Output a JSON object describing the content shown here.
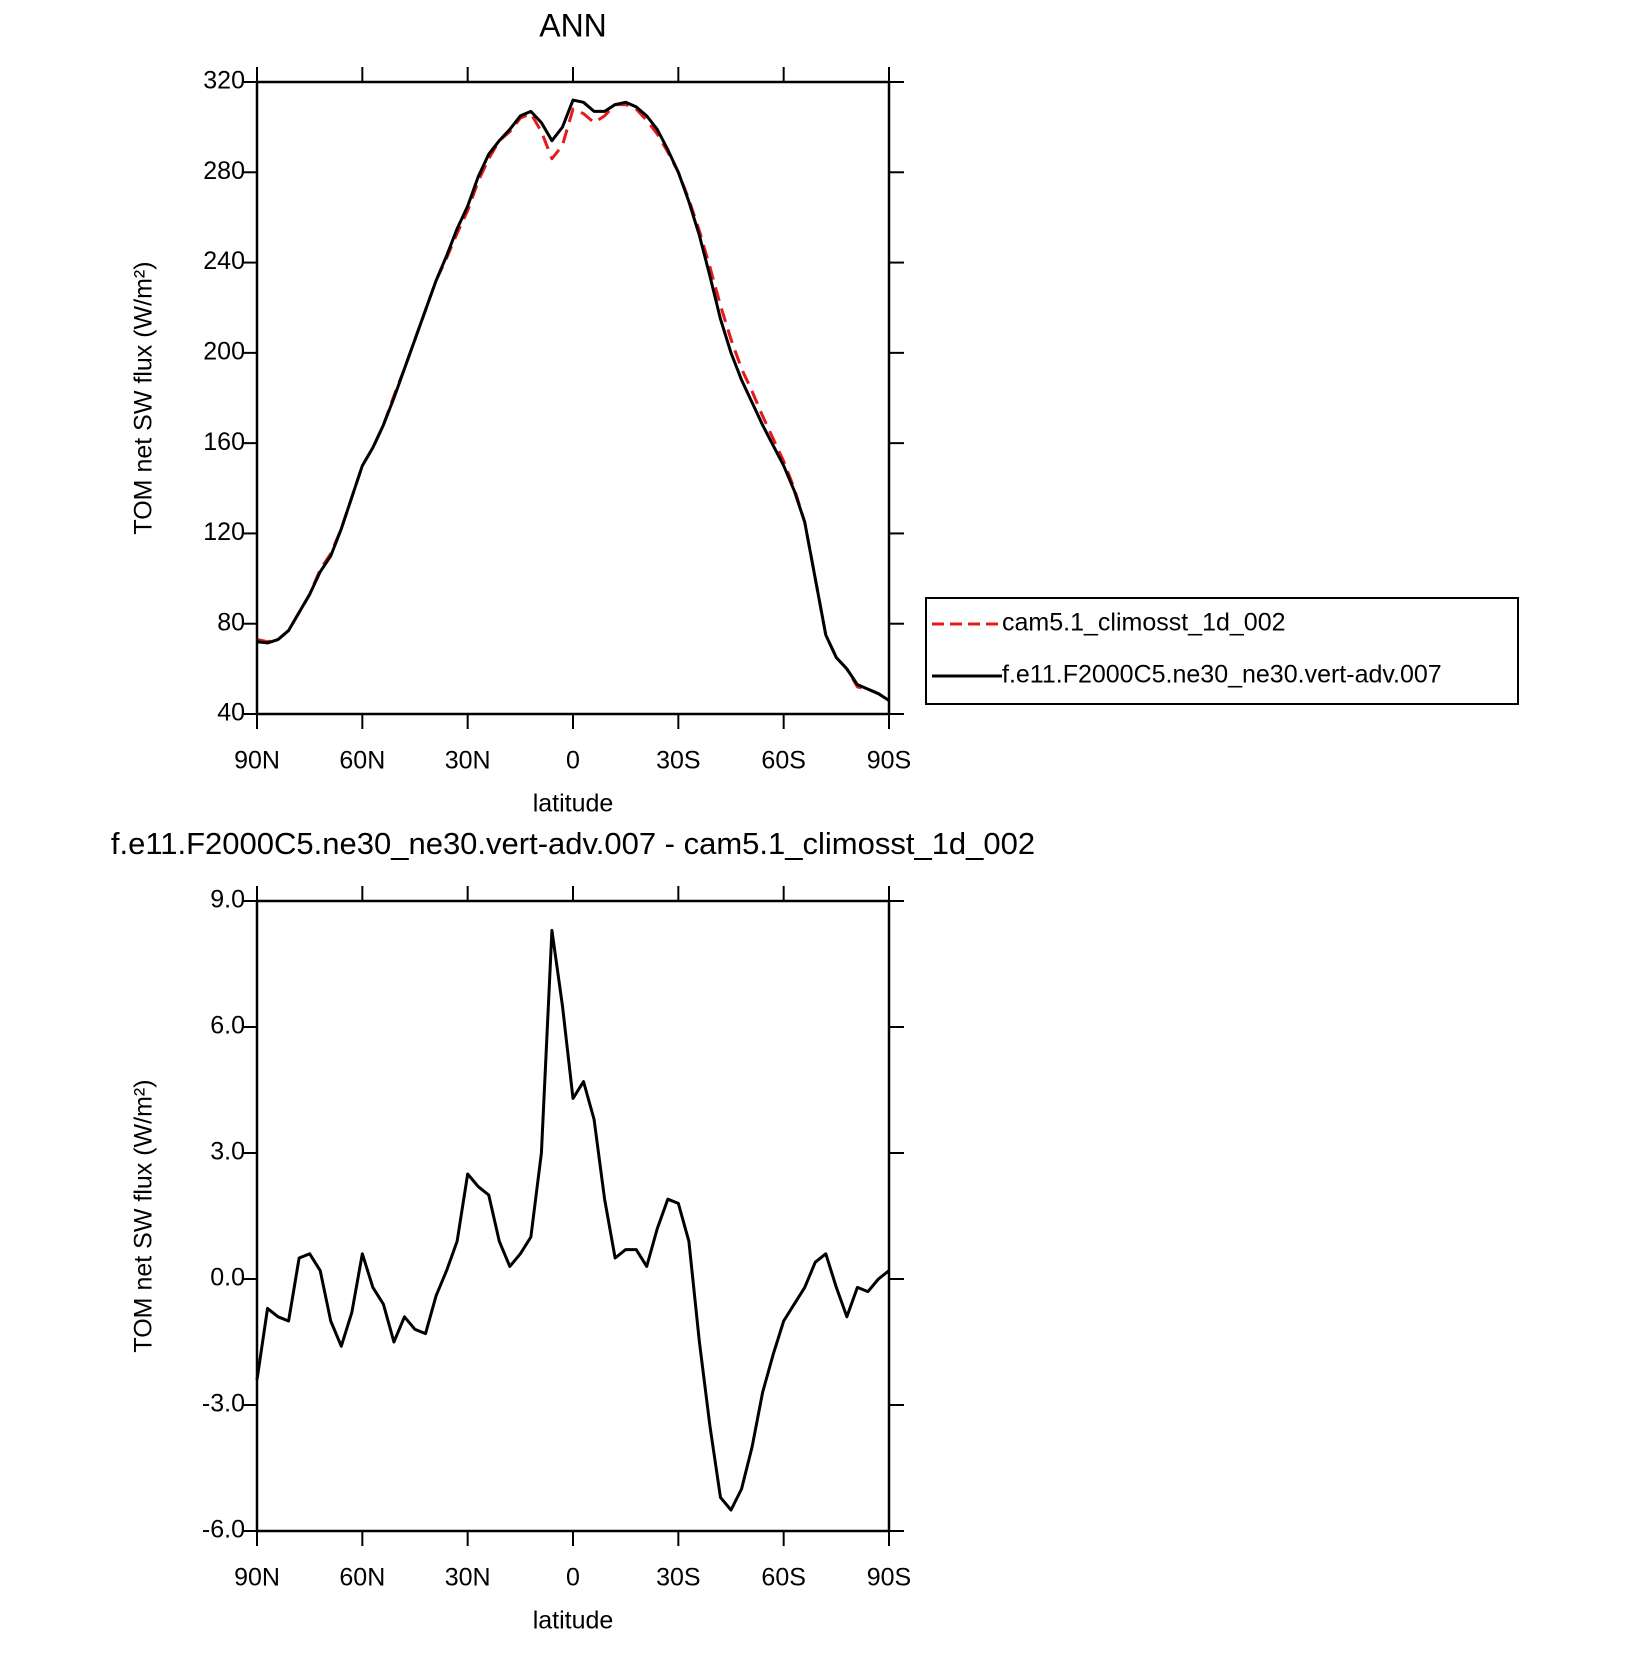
{
  "chart_data": [
    {
      "type": "line",
      "title": "ANN",
      "xlabel": "latitude",
      "ylabel": "TOM net SW flux (W/m²)",
      "x": [
        90,
        87,
        84,
        81,
        78,
        75,
        72,
        69,
        66,
        63,
        60,
        57,
        54,
        51,
        48,
        45,
        42,
        39,
        36,
        33,
        30,
        27,
        24,
        21,
        18,
        15,
        12,
        9,
        6,
        3,
        0,
        -3,
        -6,
        -9,
        -12,
        -15,
        -18,
        -21,
        -24,
        -27,
        -30,
        -33,
        -36,
        -39,
        -42,
        -45,
        -48,
        -51,
        -54,
        -57,
        -60,
        -63,
        -66,
        -69,
        -72,
        -75,
        -78,
        -81,
        -84,
        -87,
        -90
      ],
      "xlim": [
        90,
        -90
      ],
      "xticks": [
        {
          "value": 90,
          "label": "90N"
        },
        {
          "value": 60,
          "label": "60N"
        },
        {
          "value": 30,
          "label": "30N"
        },
        0,
        {
          "value": -30,
          "label": "30S"
        },
        {
          "value": -60,
          "label": "60S"
        },
        {
          "value": -90,
          "label": "90S"
        }
      ],
      "ylim": [
        40,
        320
      ],
      "yticks": [
        40,
        80,
        120,
        160,
        200,
        240,
        280,
        320
      ],
      "legend": "outside-right",
      "series": [
        {
          "name": "cam5.1_climosst_1d_002",
          "color": "#e41a1c",
          "style": "dashed",
          "values": [
            73,
            72,
            73,
            77,
            85,
            93,
            104,
            111,
            122,
            136,
            150,
            158,
            168,
            181,
            193,
            206,
            219,
            232,
            242,
            253,
            263,
            276,
            286,
            294,
            298,
            304,
            306,
            298,
            286,
            292,
            308,
            306,
            302,
            305,
            310,
            310,
            308,
            303,
            297,
            289,
            280,
            268,
            254,
            238,
            221,
            206,
            193,
            183,
            172,
            162,
            152,
            140,
            125,
            100,
            75,
            65,
            60,
            52,
            51,
            49,
            46
          ]
        },
        {
          "name": "f.e11.F2000C5.ne30_ne30.vert-adv.007",
          "color": "#000000",
          "style": "solid",
          "values": [
            72,
            71.5,
            73,
            77,
            85,
            93,
            103,
            110,
            122,
            136,
            150,
            158,
            168,
            180,
            193,
            206,
            219,
            232,
            243,
            255,
            265,
            278,
            288,
            294,
            299,
            305,
            307,
            302,
            294,
            300,
            312,
            311,
            307,
            307,
            310,
            311,
            309,
            305,
            299,
            290,
            280,
            267,
            252,
            234,
            215,
            200,
            188,
            178,
            168,
            159,
            150,
            139,
            125,
            100,
            75,
            65,
            60,
            53,
            51,
            49,
            46
          ]
        }
      ]
    },
    {
      "type": "line",
      "title": "f.e11.F2000C5.ne30_ne30.vert-adv.007 - cam5.1_climosst_1d_002",
      "xlabel": "latitude",
      "ylabel": "TOM net SW flux (W/m²)",
      "x": [
        90,
        87,
        84,
        81,
        78,
        75,
        72,
        69,
        66,
        63,
        60,
        57,
        54,
        51,
        48,
        45,
        42,
        39,
        36,
        33,
        30,
        27,
        24,
        21,
        18,
        15,
        12,
        9,
        6,
        3,
        0,
        -3,
        -6,
        -9,
        -12,
        -15,
        -18,
        -21,
        -24,
        -27,
        -30,
        -33,
        -36,
        -39,
        -42,
        -45,
        -48,
        -51,
        -54,
        -57,
        -60,
        -63,
        -66,
        -69,
        -72,
        -75,
        -78,
        -81,
        -84,
        -87,
        -90
      ],
      "xlim": [
        90,
        -90
      ],
      "xticks": [
        {
          "value": 90,
          "label": "90N"
        },
        {
          "value": 60,
          "label": "60N"
        },
        {
          "value": 30,
          "label": "30N"
        },
        0,
        {
          "value": -30,
          "label": "30S"
        },
        {
          "value": -60,
          "label": "60S"
        },
        {
          "value": -90,
          "label": "90S"
        }
      ],
      "ylim": [
        -6,
        9
      ],
      "yticks": [
        {
          "value": -6,
          "label": "-6.0"
        },
        {
          "value": -3,
          "label": "-3.0"
        },
        {
          "value": 0,
          "label": "0.0"
        },
        {
          "value": 3,
          "label": "3.0"
        },
        {
          "value": 6,
          "label": "6.0"
        },
        {
          "value": 9,
          "label": "9.0"
        }
      ],
      "series": [
        {
          "color": "#000000",
          "style": "solid",
          "values": [
            -2.4,
            -0.7,
            -0.9,
            -1.0,
            0.5,
            0.6,
            0.2,
            -1.0,
            -1.6,
            -0.8,
            0.6,
            -0.2,
            -0.6,
            -1.5,
            -0.9,
            -1.2,
            -1.3,
            -0.4,
            0.2,
            0.9,
            2.5,
            2.2,
            2.0,
            0.9,
            0.3,
            0.6,
            1.0,
            3.0,
            8.3,
            6.5,
            4.3,
            4.7,
            3.8,
            1.9,
            0.5,
            0.7,
            0.7,
            0.3,
            1.2,
            1.9,
            1.8,
            0.9,
            -1.5,
            -3.5,
            -5.2,
            -5.5,
            -5.0,
            -4.0,
            -2.7,
            -1.8,
            -1.0,
            -0.6,
            -0.2,
            0.4,
            0.6,
            -0.2,
            -0.9,
            -0.2,
            -0.3,
            0.0,
            0.2
          ]
        }
      ]
    }
  ]
}
